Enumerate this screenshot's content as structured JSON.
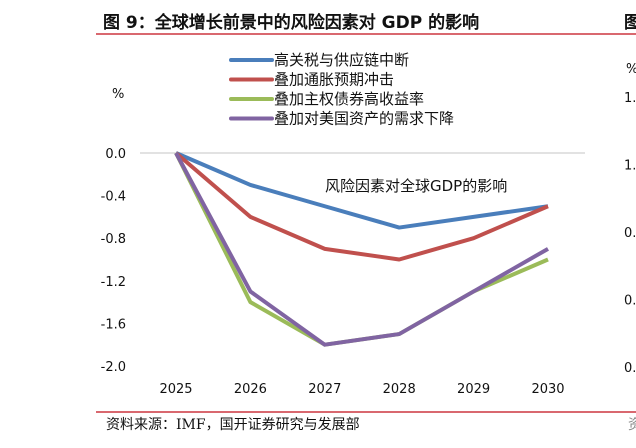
{
  "title": "图 9：全球增长前景中的风险因素对 GDP 的影响",
  "source": "资料来源：IMF，国开证券研究与发展部",
  "right_panel": {
    "title_fragment": "图",
    "unit": "%",
    "ticks": [
      "1.",
      "1.",
      "0.",
      "0.",
      "0."
    ],
    "source_fragment": "资"
  },
  "chart_data": {
    "type": "line",
    "title": "",
    "annotation": "风险因素对全球GDP的影响",
    "ylabel": "%",
    "xlabel": "",
    "categories": [
      "2025",
      "2026",
      "2027",
      "2028",
      "2029",
      "2030"
    ],
    "ylim": [
      -2.0,
      0.0
    ],
    "yticks": [
      "0.0",
      "-0.4",
      "-0.8",
      "-1.2",
      "-1.6",
      "-2.0"
    ],
    "grid": "zero line only",
    "legend_position": "top",
    "series": [
      {
        "name": "高关税与供应链中断",
        "color": "#4a7ebb",
        "values": [
          0,
          -0.3,
          -0.5,
          -0.7,
          -0.6,
          -0.5
        ]
      },
      {
        "name": "叠加通胀预期冲击",
        "color": "#c0504d",
        "values": [
          0,
          -0.6,
          -0.9,
          -1.0,
          -0.8,
          -0.5
        ]
      },
      {
        "name": "叠加主权债券高收益率",
        "color": "#9bbb59",
        "values": [
          0,
          -1.4,
          -1.8,
          -1.7,
          -1.3,
          -1.0
        ]
      },
      {
        "name": "叠加对美国资产的需求下降",
        "color": "#8064a2",
        "values": [
          0,
          -1.3,
          -1.8,
          -1.7,
          -1.3,
          -0.9
        ]
      }
    ]
  }
}
